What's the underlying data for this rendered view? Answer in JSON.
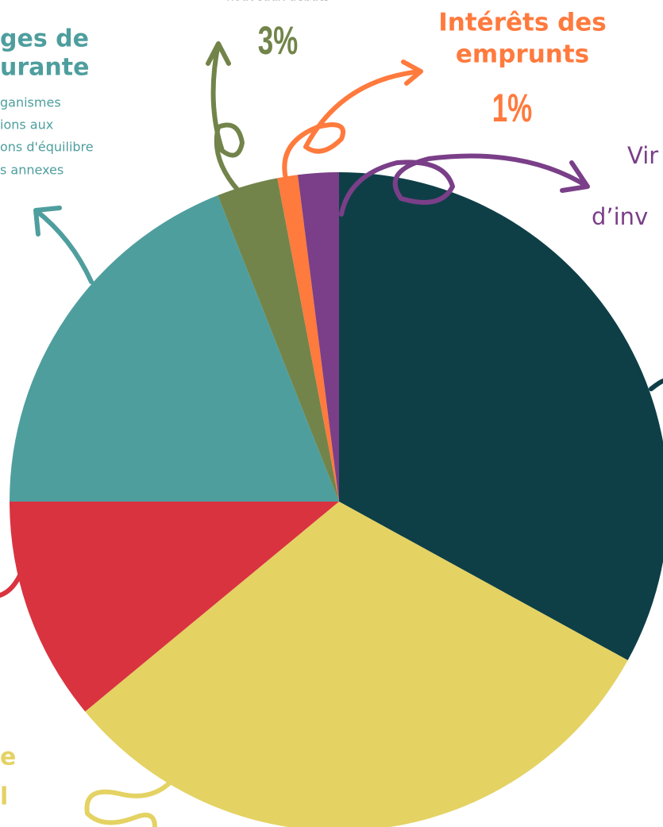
{
  "chart_data": {
    "type": "pie",
    "categories": [
      null,
      null,
      null,
      null,
      null,
      null,
      null
    ],
    "values": [
      33,
      31,
      11,
      19,
      3,
      1,
      2
    ],
    "value_labels": [
      null,
      null,
      null,
      null,
      "3%",
      "1%",
      null
    ],
    "colors": [
      "#0e3f47",
      "#e4d263",
      "#d93340",
      "#4f9e9e",
      "#72844a",
      "#ff7a3d",
      "#7a3f88"
    ],
    "annotations": [
      {
        "text": "nouveaux débats",
        "color": "#777777"
      },
      {
        "text": "ges de",
        "color": "#4f9e9e"
      },
      {
        "text": "urante",
        "color": "#4f9e9e"
      },
      {
        "text": "ganismes",
        "color": "#4f9e9e"
      },
      {
        "text": "ions aux",
        "color": "#4f9e9e"
      },
      {
        "text": "ons d'équilibre",
        "color": "#4f9e9e"
      },
      {
        "text": "s annexes",
        "color": "#4f9e9e"
      },
      {
        "text": "Intérêts des",
        "color": "#ff7a3d"
      },
      {
        "text": "emprunts",
        "color": "#ff7a3d"
      },
      {
        "text": "Vir",
        "color": "#7a3f88"
      },
      {
        "text": "d’inv",
        "color": "#7a3f88"
      },
      {
        "text": "e",
        "color": "#e4d263"
      },
      {
        "text": "l",
        "color": "#e4d263"
      }
    ]
  }
}
